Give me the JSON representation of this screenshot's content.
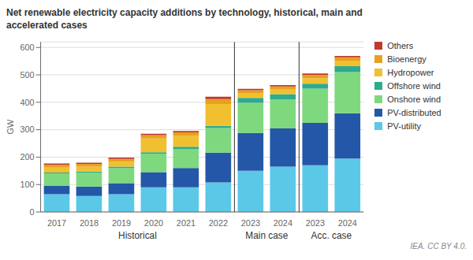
{
  "chart_data": {
    "type": "bar",
    "stacked": true,
    "title": "Net renewable electricity capacity additions by technology, historical, main and\naccelerated cases",
    "y_label": "GW",
    "categories": [
      "2017",
      "2018",
      "2019",
      "2020",
      "2021",
      "2022",
      "2023",
      "2024",
      "2023",
      "2024"
    ],
    "category_groups": [
      "Historical",
      "Historical",
      "Historical",
      "Historical",
      "Historical",
      "Historical",
      "Main case",
      "Main case",
      "Acc. case",
      "Acc. case"
    ],
    "series": [
      {
        "name": "PV-utility",
        "color": "#5bc8e8",
        "values": [
          65,
          58,
          65,
          90,
          90,
          108,
          150,
          165,
          170,
          195
        ]
      },
      {
        "name": "PV-distributed",
        "color": "#2457a8",
        "values": [
          30,
          35,
          40,
          55,
          70,
          108,
          138,
          140,
          155,
          165
        ]
      },
      {
        "name": "Onshore wind",
        "color": "#7ed87e",
        "values": [
          45,
          50,
          55,
          68,
          70,
          90,
          110,
          105,
          125,
          150
        ]
      },
      {
        "name": "Offshore wind",
        "color": "#2eaa8e",
        "values": [
          4,
          4,
          5,
          5,
          8,
          8,
          18,
          20,
          18,
          22
        ]
      },
      {
        "name": "Hydropower",
        "color": "#f0c030",
        "values": [
          18,
          18,
          18,
          50,
          40,
          80,
          18,
          18,
          20,
          20
        ]
      },
      {
        "name": "Bioenergy",
        "color": "#e8a020",
        "values": [
          10,
          10,
          10,
          12,
          12,
          18,
          10,
          10,
          12,
          12
        ]
      },
      {
        "name": "Others",
        "color": "#c0392b",
        "values": [
          5,
          5,
          5,
          5,
          5,
          8,
          5,
          5,
          5,
          5
        ]
      }
    ],
    "ylim": [
      0,
      620
    ],
    "yticks": [
      0,
      100,
      200,
      300,
      400,
      500,
      600
    ],
    "grid": true,
    "legend": "right",
    "annotations": [
      "IEA. CC BY 4.0."
    ]
  }
}
